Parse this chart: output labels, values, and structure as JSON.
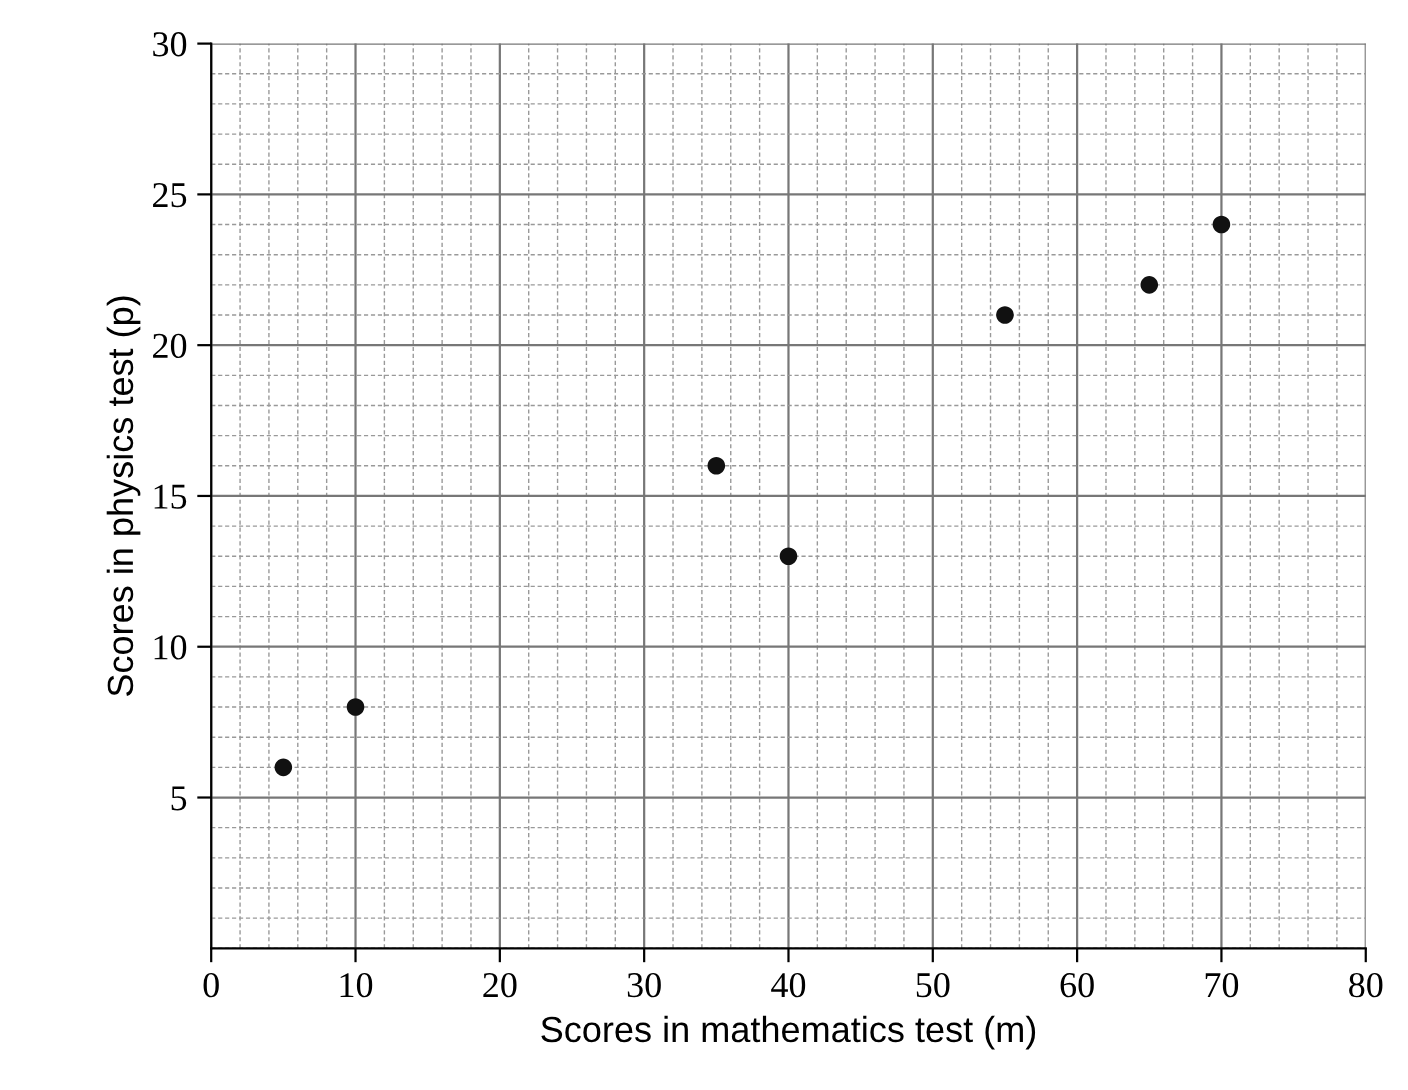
{
  "chart_data": {
    "type": "scatter",
    "xlabel": "Scores in mathematics test (m)",
    "ylabel": "Scores in physics test (p)",
    "x": [
      5,
      10,
      35,
      40,
      55,
      65,
      70
    ],
    "series": [
      {
        "color": "#111111",
        "values": [
          6,
          8,
          16,
          13,
          21,
          22,
          24
        ]
      }
    ],
    "xlim": [
      0,
      80
    ],
    "ylim": [
      0,
      30
    ],
    "xticks": [
      0,
      10,
      20,
      30,
      40,
      50,
      60,
      70,
      80
    ],
    "yticks": [
      5,
      10,
      15,
      20,
      25,
      30
    ],
    "grid": true,
    "marker": "circle",
    "legend": false
  }
}
